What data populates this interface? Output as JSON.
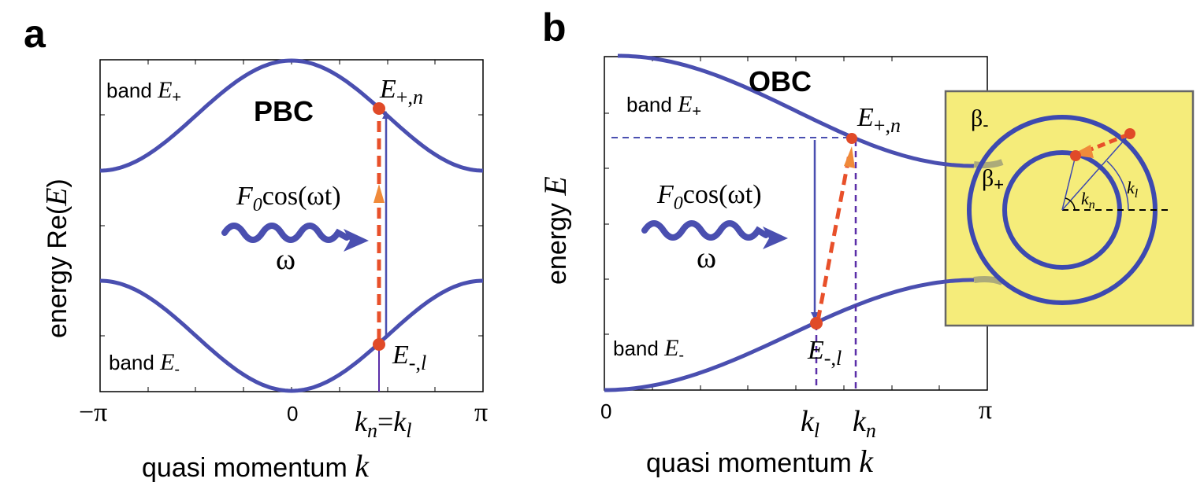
{
  "panel_a": {
    "letter": "a",
    "title": "PBC",
    "ylabel_prefix": "energy Re(",
    "ylabel_var": "E",
    "ylabel_suffix": ")",
    "xlabel_prefix": "quasi momentum ",
    "xlabel_var": "k",
    "xticks": [
      "−π",
      "0",
      "π"
    ],
    "k_label": "k",
    "k_sub_n": "n",
    "k_eq": "=",
    "k_sub_l": "l",
    "band_plus": {
      "prefix": "band ",
      "var": "E",
      "sub": "+"
    },
    "band_minus": {
      "prefix": "band ",
      "var": "E",
      "sub": "-"
    },
    "state_plus": {
      "var": "E",
      "sub": "+,",
      "idx": "n"
    },
    "state_minus": {
      "var": "E",
      "sub": "-,",
      "idx": "l"
    },
    "drive": {
      "F": "F",
      "F_sub": "0",
      "rest": "cos(ωt)",
      "omega": "ω"
    }
  },
  "panel_b": {
    "letter": "b",
    "title": "OBC",
    "ylabel_prefix": "energy ",
    "ylabel_var": "E",
    "xlabel_prefix": "quasi momentum ",
    "xlabel_var": "k",
    "xticks": [
      "0",
      "π"
    ],
    "kl": {
      "var": "k",
      "sub": "l"
    },
    "kn": {
      "var": "k",
      "sub": "n"
    },
    "band_plus": {
      "prefix": "band ",
      "var": "E",
      "sub": "+"
    },
    "band_minus": {
      "prefix": "band ",
      "var": "E",
      "sub": "-"
    },
    "state_plus": {
      "var": "E",
      "sub": "+,",
      "idx": "n"
    },
    "state_minus": {
      "var": "E",
      "sub": "-,",
      "idx": "l"
    },
    "drive": {
      "F": "F",
      "F_sub": "0",
      "rest": "cos(ωt)",
      "omega": "ω"
    },
    "inset": {
      "beta_minus": {
        "var": "β",
        "sub": "-"
      },
      "beta_plus": {
        "var": "β",
        "sub": "+"
      },
      "kn": {
        "var": "k",
        "sub": "n"
      },
      "kl": {
        "var": "k",
        "sub": "l"
      }
    }
  },
  "colors": {
    "band": "#4a4fb0",
    "arrow_dashed": "#e8502a",
    "dot": "#e04a28",
    "inset_bg": "#f5ec7a",
    "purple_guide": "#5b2fa8"
  }
}
